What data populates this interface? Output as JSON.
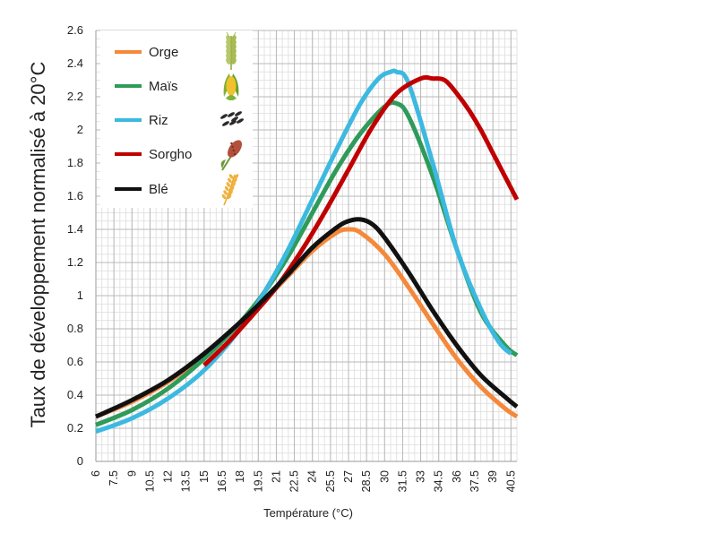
{
  "chart_data": {
    "type": "line",
    "xlabel": "Température (°C)",
    "ylabel": "Taux de développement normalisé à 20°C",
    "xlim": [
      6,
      41
    ],
    "ylim": [
      0,
      2.6
    ],
    "x_ticks": [
      "6",
      "7.5",
      "9",
      "10.5",
      "12",
      "13.5",
      "15",
      "16.5",
      "18",
      "19.5",
      "21",
      "22.5",
      "24",
      "25.5",
      "27",
      "28.5",
      "30",
      "31.5",
      "33",
      "34.5",
      "36",
      "37.5",
      "39",
      "40.5"
    ],
    "y_ticks": [
      "0",
      "0.2",
      "0.4",
      "0.6",
      "0.8",
      "1",
      "1.2",
      "1.4",
      "1.6",
      "1.8",
      "2",
      "2.2",
      "2.4",
      "2.6"
    ],
    "grid": true,
    "legend_position": "top-left",
    "series": [
      {
        "name": "Orge",
        "color": "#F5883A",
        "icon": "barley-icon",
        "x": [
          6,
          9,
          12,
          15,
          18,
          20,
          22,
          24,
          26,
          27,
          28,
          30,
          32,
          34,
          36,
          38,
          40,
          41
        ],
        "y": [
          0.27,
          0.36,
          0.48,
          0.64,
          0.83,
          0.97,
          1.12,
          1.27,
          1.38,
          1.4,
          1.38,
          1.25,
          1.05,
          0.83,
          0.62,
          0.45,
          0.32,
          0.27
        ]
      },
      {
        "name": "Maïs",
        "color": "#2E9B5A",
        "icon": "corn-icon",
        "x": [
          6,
          9,
          12,
          15,
          18,
          20,
          22,
          24,
          26,
          28,
          30,
          31,
          32,
          34,
          36,
          38,
          40,
          41
        ],
        "y": [
          0.22,
          0.31,
          0.44,
          0.62,
          0.84,
          1.02,
          1.24,
          1.5,
          1.76,
          1.98,
          2.14,
          2.16,
          2.08,
          1.72,
          1.28,
          0.9,
          0.7,
          0.64
        ]
      },
      {
        "name": "Riz",
        "color": "#3CB9E0",
        "icon": "rice-icon",
        "x": [
          6,
          9,
          12,
          15,
          18,
          20,
          22,
          24,
          26,
          28,
          29.5,
          30.5,
          31,
          32,
          34,
          36,
          38,
          39.5,
          40.5
        ],
        "y": [
          0.18,
          0.26,
          0.38,
          0.55,
          0.8,
          1.02,
          1.28,
          1.58,
          1.88,
          2.16,
          2.31,
          2.35,
          2.35,
          2.28,
          1.8,
          1.28,
          0.92,
          0.72,
          0.65
        ]
      },
      {
        "name": "Sorgho",
        "color": "#C00000",
        "icon": "sorghum-icon",
        "x": [
          15,
          17,
          19,
          21,
          23,
          25,
          27,
          29,
          31,
          33,
          34,
          35,
          36,
          37,
          38,
          39,
          40,
          41
        ],
        "y": [
          0.58,
          0.72,
          0.88,
          1.05,
          1.26,
          1.5,
          1.76,
          2.02,
          2.22,
          2.31,
          2.31,
          2.3,
          2.22,
          2.12,
          2.0,
          1.86,
          1.72,
          1.58
        ]
      },
      {
        "name": "Blé",
        "color": "#111111",
        "icon": "wheat-icon",
        "x": [
          6,
          9,
          12,
          15,
          18,
          20,
          22,
          24,
          26,
          27,
          28,
          29,
          30,
          32,
          34,
          36,
          38,
          40,
          41
        ],
        "y": [
          0.27,
          0.37,
          0.49,
          0.65,
          0.84,
          0.98,
          1.13,
          1.29,
          1.41,
          1.45,
          1.46,
          1.43,
          1.35,
          1.14,
          0.91,
          0.7,
          0.52,
          0.39,
          0.33
        ]
      }
    ]
  }
}
